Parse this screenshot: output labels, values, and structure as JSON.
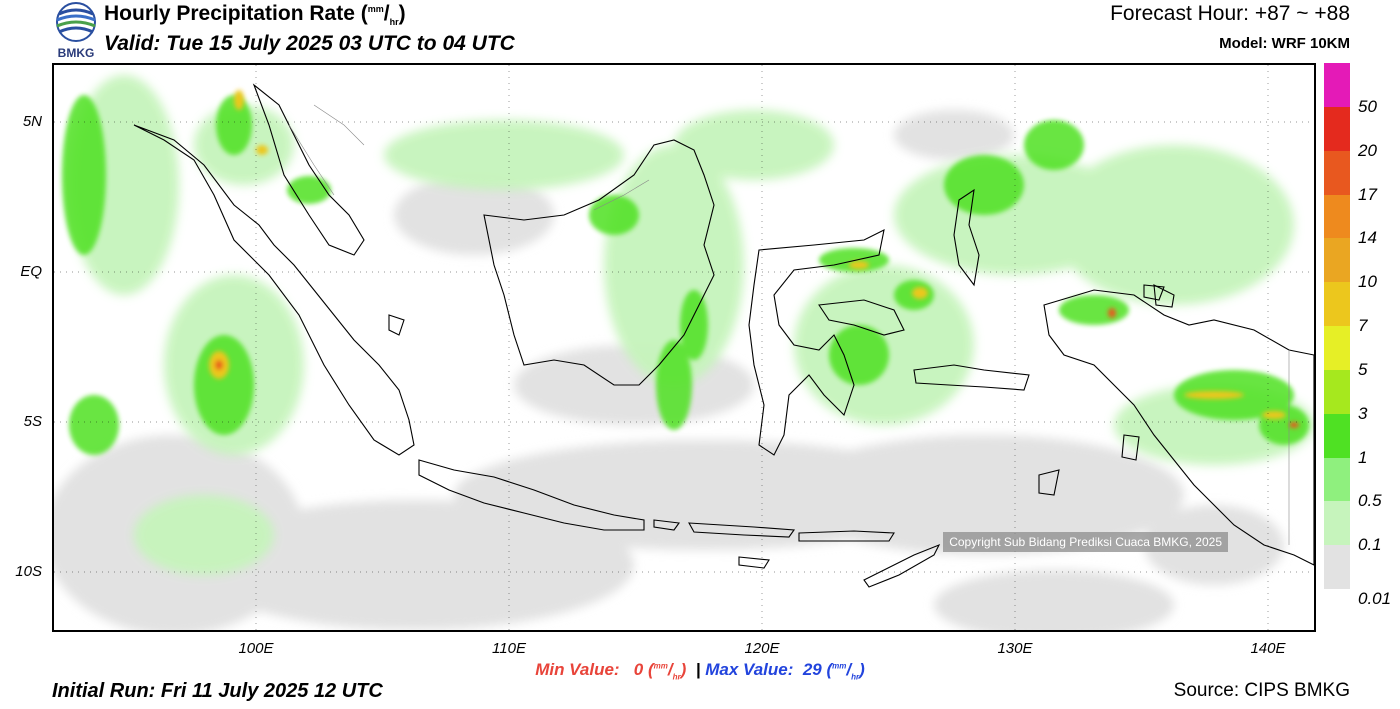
{
  "header": {
    "title_main": "Hourly Precipitation Rate (",
    "title_unit_num": "mm",
    "title_unit_den": "hr",
    "title_close": ")",
    "valid": "Valid: Tue 15 July 2025 03 UTC to 04 UTC",
    "forecast_hour": "Forecast Hour: +87 ~ +88",
    "model": "Model: WRF 10KM",
    "logo_text": "BMKG"
  },
  "axes": {
    "lat_labels": [
      "5N",
      "EQ",
      "5S",
      "10S"
    ],
    "lon_labels": [
      "100E",
      "110E",
      "120E",
      "130E",
      "140E"
    ]
  },
  "legend": {
    "labels": [
      "50",
      "20",
      "17",
      "14",
      "10",
      "7",
      "5",
      "3",
      "1",
      "0.5",
      "0.1",
      "0.01"
    ],
    "colors": [
      "#e41ab7",
      "#e42a1e",
      "#e8581f",
      "#ee8a1e",
      "#eaa622",
      "#ecc71d",
      "#e6ef26",
      "#a6e81e",
      "#4fe123",
      "#8ff07e",
      "#c6f4bc",
      "#e2e2e2"
    ]
  },
  "footer": {
    "min_label": "Min Value:",
    "min_value": "0",
    "max_label": "Max Value:",
    "max_value": "29",
    "unit_num": "mm",
    "unit_den": "hr",
    "separator": "|",
    "initial_run": "Initial Run: Fri 11 July 2025 12 UTC",
    "source": "Source: CIPS BMKG",
    "copyright": "Copyright Sub Bidang Prediksi Cuaca BMKG, 2025"
  }
}
